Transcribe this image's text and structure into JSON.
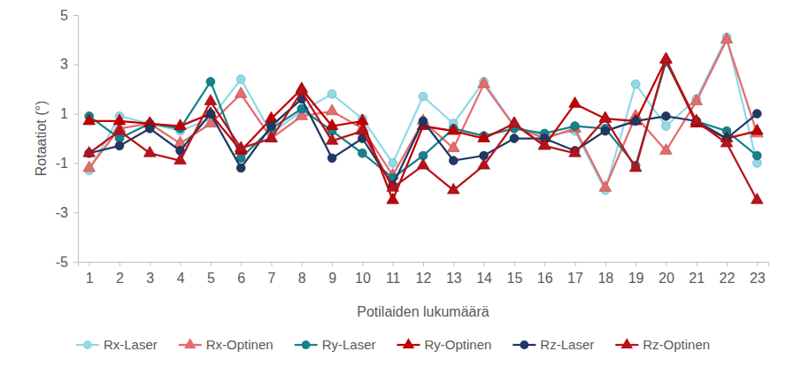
{
  "chart_data": {
    "type": "line",
    "x_label": "Potilaiden lukumäärä",
    "y_label": "Rotaatiot (°)",
    "categories": [
      "1",
      "2",
      "3",
      "4",
      "5",
      "6",
      "7",
      "8",
      "9",
      "10",
      "11",
      "12",
      "13",
      "14",
      "15",
      "16",
      "17",
      "18",
      "19",
      "20",
      "21",
      "22",
      "23"
    ],
    "ylim": [
      -5,
      5
    ],
    "yticks": [
      -5,
      -3,
      -1,
      1,
      3,
      5
    ],
    "grid": false,
    "legend": "bottom",
    "series": [
      {
        "name": "Rx-Laser",
        "color": "#92d9e8",
        "marker": "circle",
        "values": [
          -1.3,
          0.9,
          0.6,
          0.3,
          0.8,
          2.4,
          0.2,
          1.1,
          1.8,
          0.8,
          -1.0,
          1.7,
          0.6,
          2.3,
          0.5,
          0.1,
          0.3,
          -2.1,
          2.2,
          0.5,
          1.6,
          4.1,
          -1.0
        ]
      },
      {
        "name": "Rx-Optinen",
        "color": "#e46c6c",
        "marker": "triangle",
        "values": [
          -1.2,
          0.4,
          0.6,
          -0.2,
          0.6,
          1.8,
          0.0,
          0.9,
          1.1,
          0.4,
          -1.5,
          0.7,
          -0.4,
          2.2,
          0.5,
          0.0,
          0.4,
          -2.0,
          0.9,
          -0.5,
          1.5,
          4.0,
          0.2
        ]
      },
      {
        "name": "Ry-Laser",
        "color": "#17818b",
        "marker": "circle",
        "values": [
          0.9,
          0.0,
          0.6,
          0.4,
          2.3,
          -0.8,
          0.4,
          1.2,
          0.3,
          -0.6,
          -1.6,
          -0.7,
          0.4,
          0.1,
          0.4,
          0.2,
          0.5,
          0.4,
          -1.1,
          3.1,
          0.7,
          0.3,
          -0.7
        ]
      },
      {
        "name": "Ry-Optinen",
        "color": "#c00000",
        "marker": "triangle",
        "values": [
          0.7,
          0.7,
          0.6,
          0.5,
          1.0,
          -0.5,
          0.8,
          2.0,
          0.5,
          0.7,
          -2.5,
          0.5,
          0.3,
          0.0,
          0.6,
          -0.3,
          1.4,
          0.8,
          0.7,
          3.2,
          0.6,
          0.0,
          0.3
        ]
      },
      {
        "name": "Rz-Laser",
        "color": "#1f3864",
        "marker": "circle",
        "values": [
          -0.6,
          -0.3,
          0.4,
          -0.5,
          1.0,
          -1.2,
          0.5,
          1.6,
          -0.8,
          0.0,
          -1.9,
          0.7,
          -0.9,
          -0.7,
          0.0,
          0.0,
          -0.5,
          0.3,
          0.7,
          0.9,
          0.7,
          0.0,
          1.0
        ]
      },
      {
        "name": "Rz-Optinen",
        "color": "#b8121a",
        "marker": "triangle",
        "values": [
          -0.6,
          0.3,
          -0.6,
          -0.9,
          1.5,
          -0.4,
          0.0,
          1.9,
          -0.1,
          0.3,
          -2.0,
          -1.1,
          -2.1,
          -1.1,
          0.6,
          -0.3,
          -0.6,
          0.8,
          -1.2,
          3.2,
          0.7,
          -0.2,
          -2.5
        ]
      }
    ]
  }
}
